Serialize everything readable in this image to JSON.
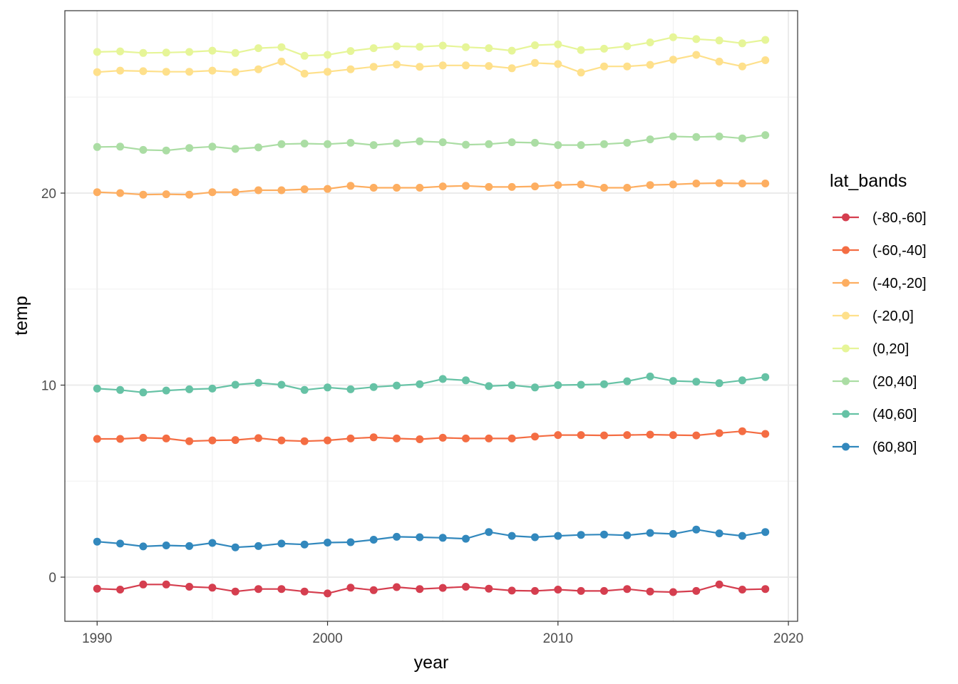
{
  "chart_data": {
    "type": "line",
    "title": "",
    "xlabel": "year",
    "ylabel": "temp",
    "xlim": [
      1988.6,
      2020.4
    ],
    "ylim": [
      -2.3,
      29.5
    ],
    "x_ticks": [
      1990,
      2000,
      2010,
      2020
    ],
    "x_tick_labels": [
      "1990",
      "2000",
      "2010",
      "2020"
    ],
    "y_ticks": [
      0,
      10,
      20
    ],
    "y_tick_labels": [
      "0",
      "10",
      "20"
    ],
    "grid": true,
    "markers": true,
    "legend": {
      "title": "lat_bands",
      "position": "right"
    },
    "x": [
      1990,
      1991,
      1992,
      1993,
      1994,
      1995,
      1996,
      1997,
      1998,
      1999,
      2000,
      2001,
      2002,
      2003,
      2004,
      2005,
      2006,
      2007,
      2008,
      2009,
      2010,
      2011,
      2012,
      2013,
      2014,
      2015,
      2016,
      2017,
      2018,
      2019
    ],
    "series": [
      {
        "name": "(-80,-60]",
        "color": "#d53e4f",
        "values": [
          -0.6,
          -0.65,
          -0.38,
          -0.38,
          -0.5,
          -0.55,
          -0.75,
          -0.62,
          -0.62,
          -0.75,
          -0.85,
          -0.55,
          -0.68,
          -0.52,
          -0.62,
          -0.56,
          -0.5,
          -0.6,
          -0.7,
          -0.72,
          -0.65,
          -0.72,
          -0.72,
          -0.62,
          -0.75,
          -0.78,
          -0.72,
          -0.38,
          -0.65,
          -0.62
        ]
      },
      {
        "name": "(-60,-40]",
        "color": "#f46d43",
        "values": [
          7.2,
          7.2,
          7.26,
          7.22,
          7.08,
          7.12,
          7.14,
          7.24,
          7.12,
          7.08,
          7.12,
          7.22,
          7.28,
          7.22,
          7.18,
          7.26,
          7.22,
          7.22,
          7.22,
          7.32,
          7.4,
          7.4,
          7.38,
          7.4,
          7.42,
          7.4,
          7.38,
          7.5,
          7.6,
          7.46
        ]
      },
      {
        "name": "(-40,-20]",
        "color": "#fdae61",
        "values": [
          20.05,
          20.0,
          19.92,
          19.94,
          19.92,
          20.05,
          20.05,
          20.15,
          20.15,
          20.2,
          20.22,
          20.38,
          20.28,
          20.28,
          20.28,
          20.35,
          20.38,
          20.32,
          20.32,
          20.35,
          20.42,
          20.45,
          20.28,
          20.28,
          20.42,
          20.45,
          20.5,
          20.52,
          20.5,
          20.5
        ]
      },
      {
        "name": "(-20,0]",
        "color": "#fee08b",
        "values": [
          26.3,
          26.38,
          26.35,
          26.32,
          26.32,
          26.38,
          26.3,
          26.45,
          26.85,
          26.22,
          26.32,
          26.45,
          26.58,
          26.7,
          26.58,
          26.65,
          26.65,
          26.62,
          26.5,
          26.78,
          26.72,
          26.28,
          26.6,
          26.6,
          26.68,
          26.95,
          27.2,
          26.85,
          26.6,
          26.92
        ]
      },
      {
        "name": "(0,20]",
        "color": "#e6f598",
        "values": [
          27.35,
          27.38,
          27.3,
          27.32,
          27.35,
          27.42,
          27.3,
          27.55,
          27.6,
          27.15,
          27.2,
          27.4,
          27.55,
          27.65,
          27.62,
          27.68,
          27.6,
          27.55,
          27.42,
          27.7,
          27.75,
          27.45,
          27.52,
          27.65,
          27.85,
          28.12,
          28.02,
          27.95,
          27.8,
          27.98
        ]
      },
      {
        "name": "(20,40]",
        "color": "#abdda4",
        "values": [
          22.4,
          22.42,
          22.25,
          22.22,
          22.35,
          22.42,
          22.3,
          22.38,
          22.55,
          22.58,
          22.55,
          22.62,
          22.5,
          22.6,
          22.7,
          22.65,
          22.52,
          22.55,
          22.65,
          22.62,
          22.5,
          22.5,
          22.55,
          22.62,
          22.8,
          22.95,
          22.92,
          22.95,
          22.85,
          23.02
        ]
      },
      {
        "name": "(40,60]",
        "color": "#66c2a5",
        "values": [
          9.82,
          9.75,
          9.62,
          9.72,
          9.78,
          9.82,
          10.02,
          10.12,
          10.02,
          9.75,
          9.88,
          9.78,
          9.9,
          9.98,
          10.05,
          10.32,
          10.25,
          9.95,
          10.0,
          9.88,
          10.0,
          10.02,
          10.05,
          10.2,
          10.45,
          10.22,
          10.18,
          10.1,
          10.25,
          10.42
        ]
      },
      {
        "name": "(60,80]",
        "color": "#3288bd",
        "values": [
          1.85,
          1.75,
          1.6,
          1.65,
          1.62,
          1.78,
          1.55,
          1.62,
          1.75,
          1.7,
          1.8,
          1.82,
          1.95,
          2.1,
          2.08,
          2.05,
          2.0,
          2.35,
          2.15,
          2.08,
          2.15,
          2.2,
          2.22,
          2.18,
          2.3,
          2.25,
          2.48,
          2.28,
          2.15,
          2.35
        ]
      }
    ]
  }
}
